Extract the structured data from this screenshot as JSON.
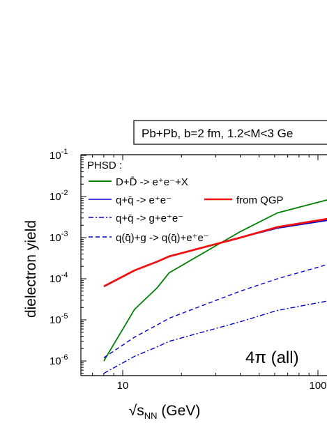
{
  "chart_data": {
    "type": "line",
    "title": "Pb+Pb, b=2 fm, 1.2<M<3 Ge",
    "xlabel": "√s",
    "xlabel_sub": "NN",
    "xlabel_unit": " (GeV)",
    "ylabel": "dielectron yield",
    "x_scale": "log",
    "y_scale": "log",
    "xlim": [
      6,
      140
    ],
    "ylim": [
      4e-07,
      0.4
    ],
    "x_ticks": [
      {
        "value": 10,
        "label": "10"
      },
      {
        "value": 100,
        "label": "100"
      }
    ],
    "y_ticks": [
      {
        "value": 1e-06,
        "base": "10",
        "exp": "-6"
      },
      {
        "value": 1e-05,
        "base": "10",
        "exp": "-5"
      },
      {
        "value": 0.0001,
        "base": "10",
        "exp": "-4"
      },
      {
        "value": 0.001,
        "base": "10",
        "exp": "-3"
      },
      {
        "value": 0.01,
        "base": "10",
        "exp": "-2"
      },
      {
        "value": 0.1,
        "base": "10",
        "exp": "-1"
      }
    ],
    "legend_header": "PHSD :",
    "annotation": "4π (all)",
    "series": [
      {
        "name": "D+D̄ -> e⁺e⁻+X",
        "color": "#008000",
        "style": "solid",
        "x": [
          8,
          11.5,
          15,
          17.3,
          40,
          62,
          140
        ],
        "y": [
          1e-06,
          1.8e-05,
          6e-05,
          0.00014,
          0.0014,
          0.004,
          0.011
        ]
      },
      {
        "name": "q+q̄ -> e⁺e⁻",
        "color": "#0000cc",
        "style": "solid",
        "x": [
          8,
          11.5,
          15,
          17.3,
          40,
          62,
          140
        ],
        "y": [
          6.5e-05,
          0.00016,
          0.00026,
          0.00035,
          0.001,
          0.0017,
          0.0031
        ]
      },
      {
        "name": "from QGP",
        "color": "#ee1111",
        "style": "solid",
        "x": [
          8,
          11.5,
          15,
          17.3,
          40,
          62,
          140
        ],
        "y": [
          6.5e-05,
          0.00016,
          0.00026,
          0.00035,
          0.001,
          0.0018,
          0.0034
        ]
      },
      {
        "name": "q+q̄ -> g+e⁺e⁻",
        "color": "#0000cc",
        "style": "dashdot",
        "x": [
          8,
          11.5,
          15,
          17.3,
          40,
          62,
          140
        ],
        "y": [
          5e-07,
          1.3e-06,
          2.2e-06,
          3e-06,
          9e-06,
          1.7e-05,
          3.5e-05
        ]
      },
      {
        "name": "q(q̄)+g -> q(q̄)+e⁺e⁻",
        "color": "#0000cc",
        "style": "dash",
        "x": [
          8,
          11.5,
          15,
          17.3,
          40,
          62,
          140
        ],
        "y": [
          1.2e-06,
          3.8e-06,
          7.5e-06,
          1.1e-05,
          5e-05,
          0.0001,
          0.0003
        ]
      }
    ]
  }
}
